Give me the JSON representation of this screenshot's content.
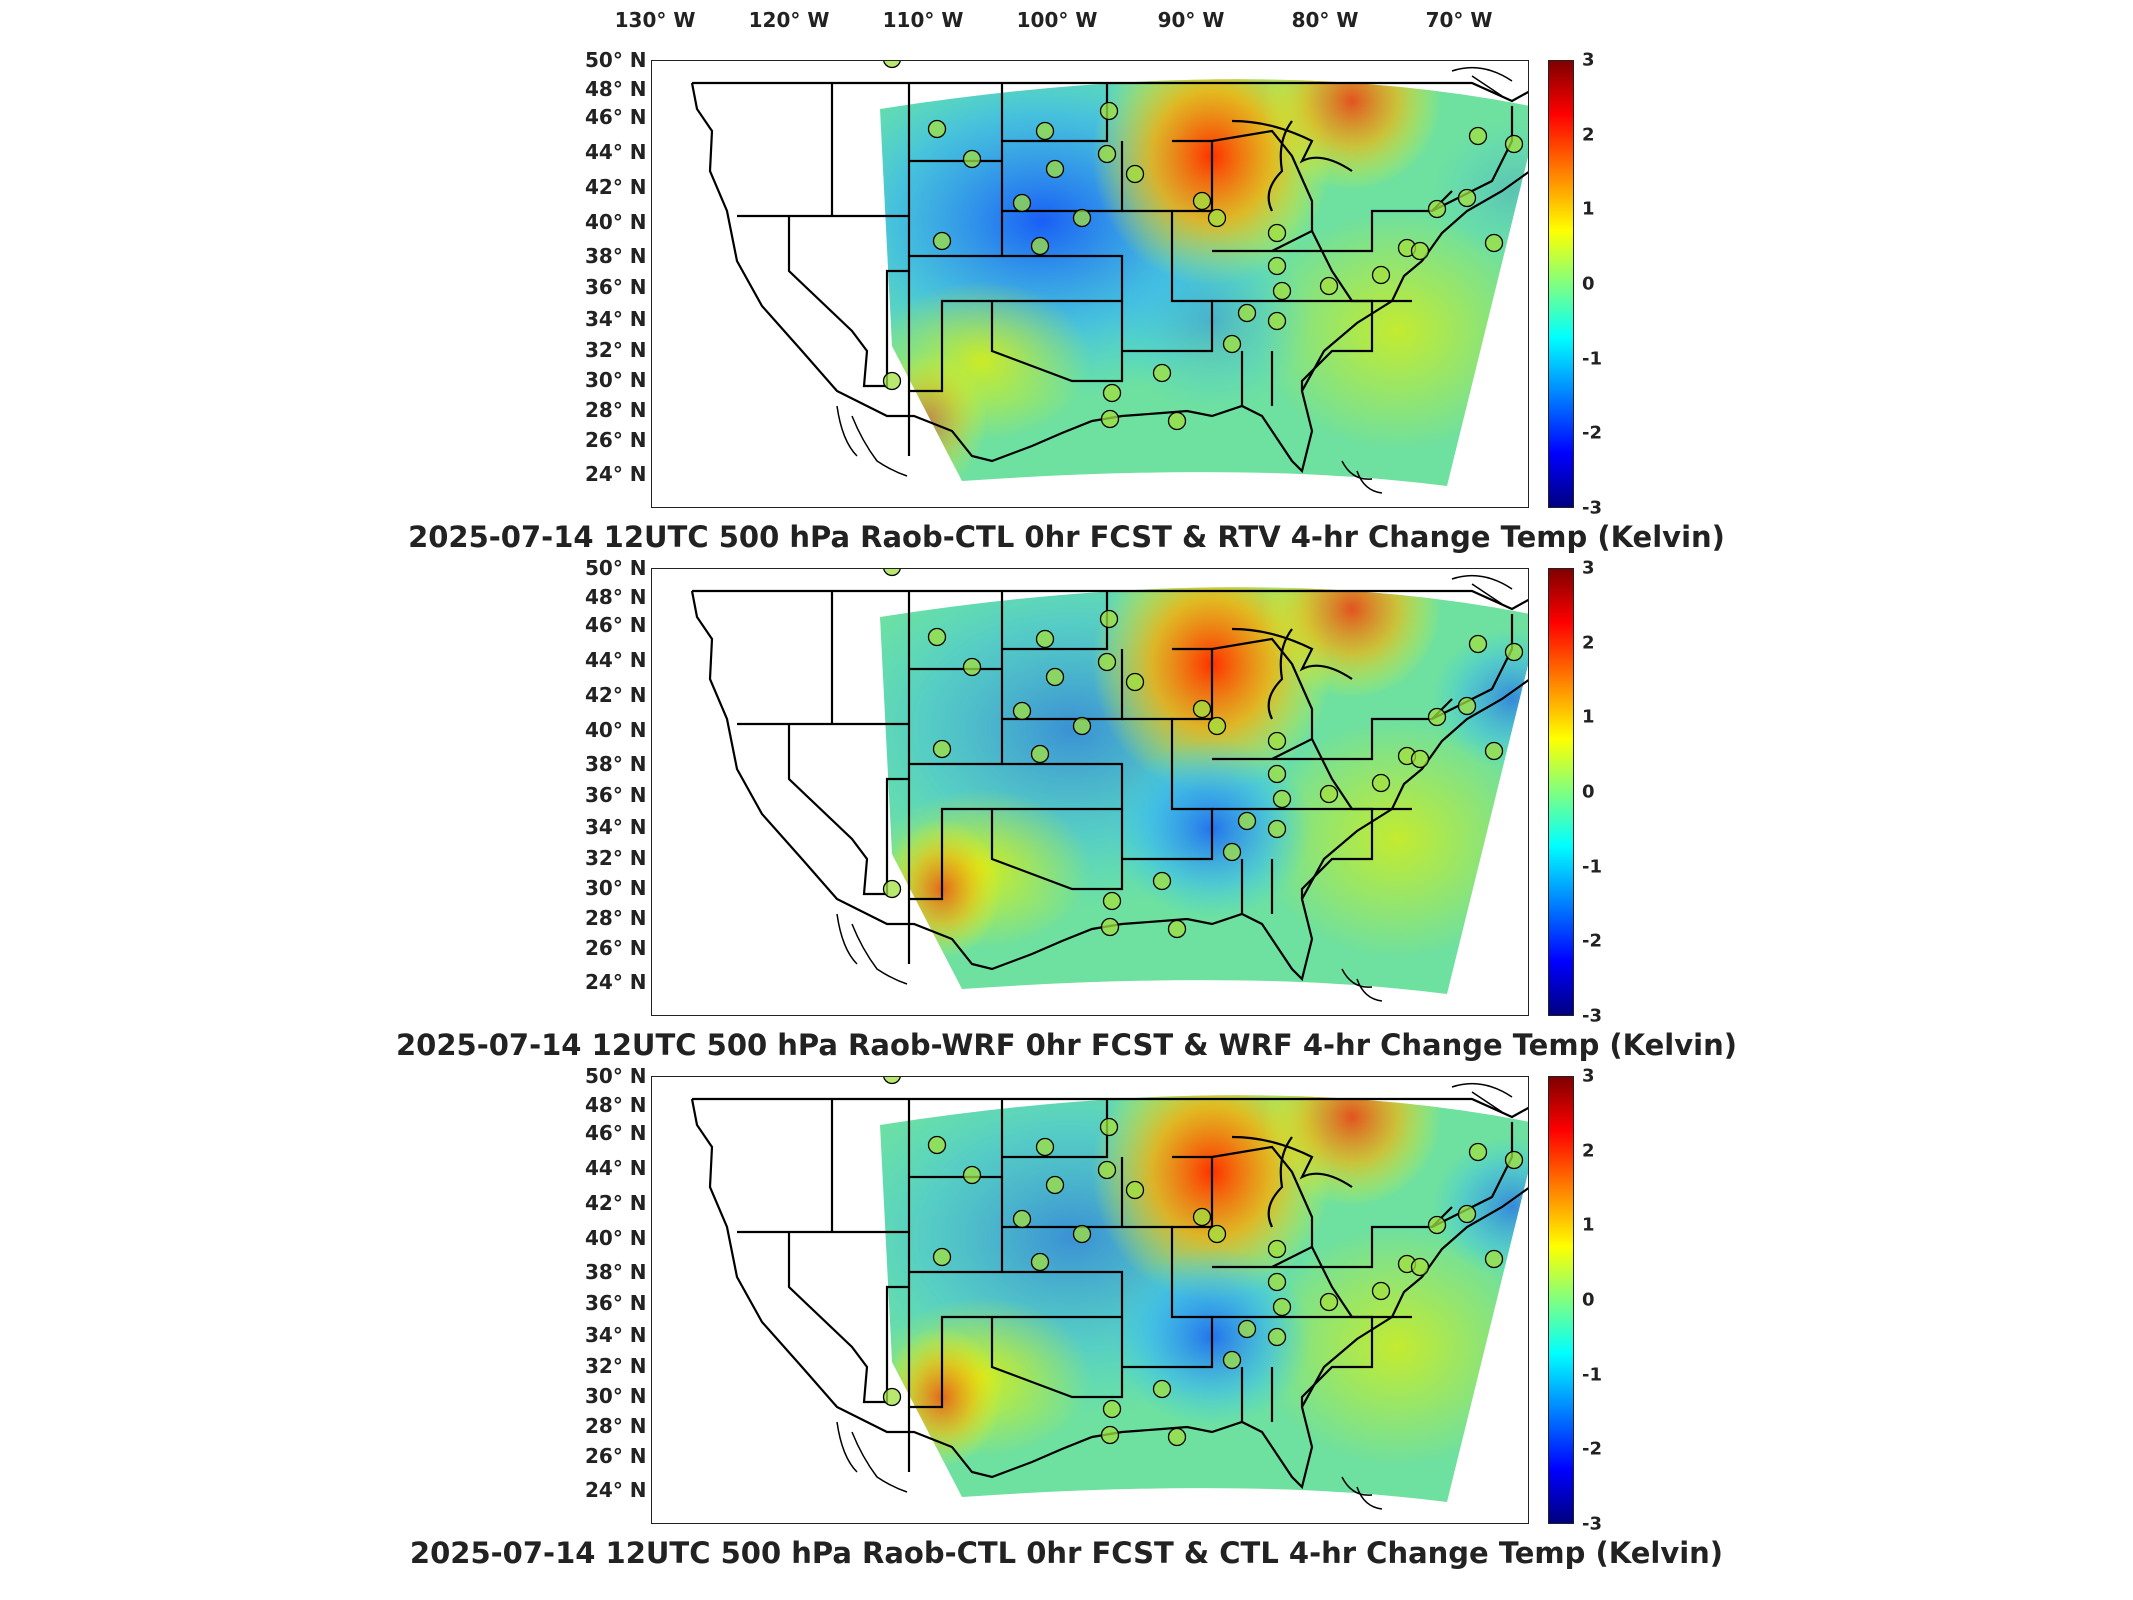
{
  "lon_ticks": [
    "130° W",
    "120° W",
    "110° W",
    "100° W",
    "90° W",
    "80° W",
    "70° W"
  ],
  "lat_ticks": [
    "50° N",
    "48° N",
    "46° N",
    "44° N",
    "42° N",
    "40° N",
    "38° N",
    "36° N",
    "34° N",
    "32° N",
    "30° N",
    "28° N",
    "26° N",
    "24° N"
  ],
  "colorbar": {
    "ticks": [
      "3",
      "2",
      "1",
      "0",
      "-1",
      "-2",
      "-3"
    ],
    "min": -3,
    "max": 3,
    "colormap": "jet"
  },
  "panels": [
    {
      "title": "2025-07-14 12UTC 500 hPa Raob-CTL 0hr FCST & RTV 4-hr Change Temp (Kelvin)"
    },
    {
      "title": "2025-07-14 12UTC 500 hPa Raob-WRF 0hr FCST & WRF 4-hr Change Temp (Kelvin)"
    },
    {
      "title": "2025-07-14 12UTC 500 hPa Raob-CTL 0hr FCST & CTL 4-hr Change Temp (Kelvin)"
    }
  ],
  "colors": {
    "warm": "#ff3000",
    "cool": "#1060ff",
    "neutral": "#7ee08a"
  }
}
